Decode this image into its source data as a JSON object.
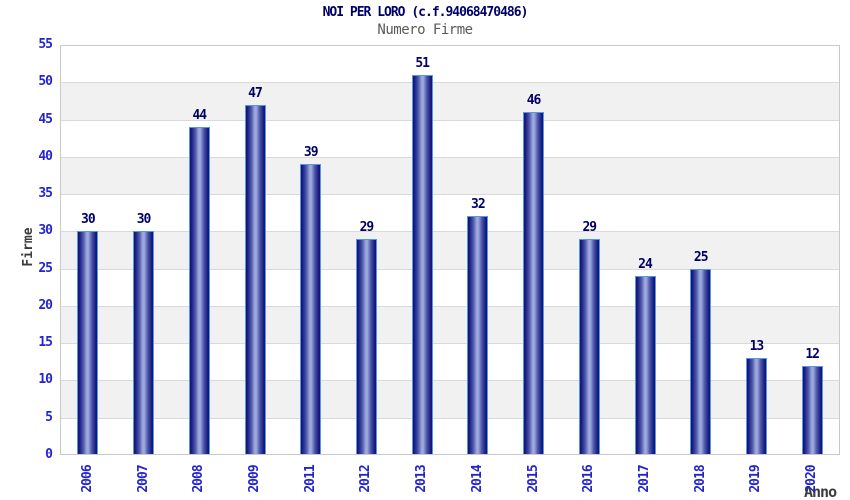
{
  "chart_data": {
    "type": "bar",
    "title": "NOI PER LORO (c.f.94068470486)",
    "subtitle": "Numero Firme",
    "xlabel": "Anno",
    "ylabel": "Firme",
    "categories": [
      "2006",
      "2007",
      "2008",
      "2009",
      "2011",
      "2012",
      "2013",
      "2014",
      "2015",
      "2016",
      "2017",
      "2018",
      "2019",
      "2020"
    ],
    "values": [
      30,
      30,
      44,
      47,
      39,
      29,
      51,
      32,
      46,
      29,
      24,
      25,
      13,
      12
    ],
    "ylim": [
      0,
      55
    ],
    "ytick_step": 5,
    "grid": "horizontal-bands-alternating",
    "legend": "none",
    "colors": {
      "title": "#000066",
      "subtitle": "#5a5a5a",
      "axis_label": "#3c3c3c",
      "tick_label": "#2424cf",
      "value_label": "#000066",
      "bar_dark": "#15157b",
      "bar_mid": "#4c58ab",
      "bar_light": "#9ea8db",
      "bar_border": "#5598e3",
      "band": "#f1f1f1",
      "gridline": "#d9d9d9",
      "plot_border": "#c9c9c9",
      "background": "#ffffff"
    }
  }
}
